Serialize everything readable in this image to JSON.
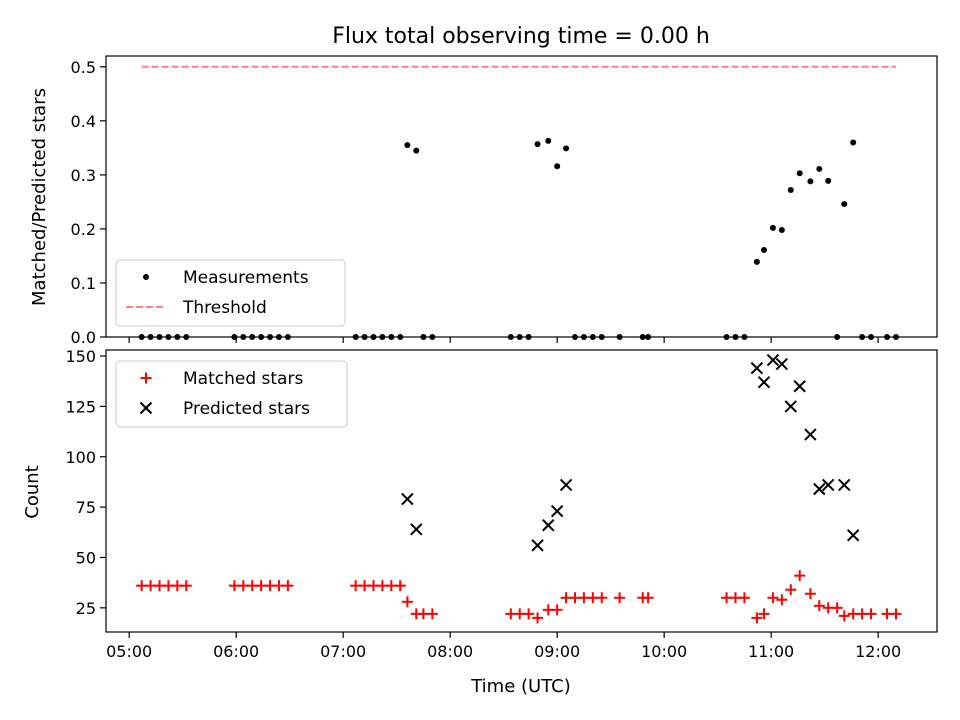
{
  "chart_data": [
    {
      "type": "scatter",
      "title": "Flux total observing time = 0.00 h",
      "ylabel": "Matched/Predicted stars",
      "xlabel": "",
      "xlim": [
        "04:47",
        "12:33"
      ],
      "ylim": [
        0,
        0.52
      ],
      "yticks": [
        "0.0",
        "0.1",
        "0.2",
        "0.3",
        "0.4",
        "0.5"
      ],
      "grid": false,
      "legend_position": "lower-left",
      "series": [
        {
          "name": "Measurements",
          "marker": "dot",
          "color": "#000000",
          "points": [
            [
              "05:07",
              0
            ],
            [
              "05:12",
              0
            ],
            [
              "05:17",
              0
            ],
            [
              "05:22",
              0
            ],
            [
              "05:27",
              0
            ],
            [
              "05:32",
              0
            ],
            [
              "05:59",
              0
            ],
            [
              "06:04",
              0
            ],
            [
              "06:09",
              0
            ],
            [
              "06:14",
              0
            ],
            [
              "06:19",
              0
            ],
            [
              "06:24",
              0
            ],
            [
              "06:29",
              0
            ],
            [
              "07:07",
              0
            ],
            [
              "07:12",
              0
            ],
            [
              "07:17",
              0
            ],
            [
              "07:22",
              0
            ],
            [
              "07:27",
              0
            ],
            [
              "07:32",
              0
            ],
            [
              "07:36",
              0.355
            ],
            [
              "07:41",
              0.345
            ],
            [
              "07:45",
              0
            ],
            [
              "07:50",
              0
            ],
            [
              "08:34",
              0
            ],
            [
              "08:39",
              0
            ],
            [
              "08:44",
              0
            ],
            [
              "08:49",
              0.357
            ],
            [
              "08:55",
              0.363
            ],
            [
              "09:00",
              0.316
            ],
            [
              "09:05",
              0.349
            ],
            [
              "09:10",
              0
            ],
            [
              "09:15",
              0
            ],
            [
              "09:20",
              0
            ],
            [
              "09:25",
              0
            ],
            [
              "09:35",
              0
            ],
            [
              "09:48",
              0
            ],
            [
              "09:51",
              0
            ],
            [
              "10:35",
              0
            ],
            [
              "10:40",
              0
            ],
            [
              "10:45",
              0
            ],
            [
              "10:52",
              0.139
            ],
            [
              "10:56",
              0.161
            ],
            [
              "11:01",
              0.202
            ],
            [
              "11:06",
              0.198
            ],
            [
              "11:11",
              0.272
            ],
            [
              "11:16",
              0.303
            ],
            [
              "11:22",
              0.288
            ],
            [
              "11:27",
              0.311
            ],
            [
              "11:32",
              0.289
            ],
            [
              "11:37",
              0
            ],
            [
              "11:41",
              0.246
            ],
            [
              "11:46",
              0.36
            ],
            [
              "11:51",
              0
            ],
            [
              "11:56",
              0
            ],
            [
              "12:05",
              0
            ],
            [
              "12:10",
              0
            ]
          ]
        },
        {
          "name": "Threshold",
          "line_style": "dashed",
          "color": "#ff7f7f",
          "points": [
            [
              "05:07",
              0.5
            ],
            [
              "12:10",
              0.5
            ]
          ]
        }
      ]
    },
    {
      "type": "scatter",
      "title": "",
      "ylabel": "Count",
      "xlabel": "Time (UTC)",
      "xlim": [
        "04:47",
        "12:33"
      ],
      "ylim": [
        13,
        153
      ],
      "xticks": [
        "05:00",
        "06:00",
        "07:00",
        "08:00",
        "09:00",
        "10:00",
        "11:00",
        "12:00"
      ],
      "yticks": [
        "25",
        "50",
        "75",
        "100",
        "125",
        "150"
      ],
      "grid": false,
      "legend_position": "upper-left",
      "series": [
        {
          "name": "Matched stars",
          "marker": "plus",
          "color": "#ff0000",
          "points": [
            [
              "05:07",
              36
            ],
            [
              "05:12",
              36
            ],
            [
              "05:17",
              36
            ],
            [
              "05:22",
              36
            ],
            [
              "05:27",
              36
            ],
            [
              "05:32",
              36
            ],
            [
              "05:59",
              36
            ],
            [
              "06:04",
              36
            ],
            [
              "06:09",
              36
            ],
            [
              "06:14",
              36
            ],
            [
              "06:19",
              36
            ],
            [
              "06:24",
              36
            ],
            [
              "06:29",
              36
            ],
            [
              "07:07",
              36
            ],
            [
              "07:12",
              36
            ],
            [
              "07:17",
              36
            ],
            [
              "07:22",
              36
            ],
            [
              "07:27",
              36
            ],
            [
              "07:32",
              36
            ],
            [
              "07:36",
              28
            ],
            [
              "07:41",
              22
            ],
            [
              "07:45",
              22
            ],
            [
              "07:50",
              22
            ],
            [
              "08:34",
              22
            ],
            [
              "08:39",
              22
            ],
            [
              "08:44",
              22
            ],
            [
              "08:49",
              20
            ],
            [
              "08:55",
              24
            ],
            [
              "09:00",
              24
            ],
            [
              "09:05",
              30
            ],
            [
              "09:10",
              30
            ],
            [
              "09:15",
              30
            ],
            [
              "09:20",
              30
            ],
            [
              "09:25",
              30
            ],
            [
              "09:35",
              30
            ],
            [
              "09:48",
              30
            ],
            [
              "09:51",
              30
            ],
            [
              "10:35",
              30
            ],
            [
              "10:40",
              30
            ],
            [
              "10:45",
              30
            ],
            [
              "10:52",
              20
            ],
            [
              "10:56",
              22
            ],
            [
              "11:01",
              30
            ],
            [
              "11:06",
              29
            ],
            [
              "11:11",
              34
            ],
            [
              "11:16",
              41
            ],
            [
              "11:22",
              32
            ],
            [
              "11:27",
              26
            ],
            [
              "11:32",
              25
            ],
            [
              "11:37",
              25
            ],
            [
              "11:41",
              21
            ],
            [
              "11:46",
              22
            ],
            [
              "11:51",
              22
            ],
            [
              "11:56",
              22
            ],
            [
              "12:05",
              22
            ],
            [
              "12:10",
              22
            ]
          ]
        },
        {
          "name": "Predicted stars",
          "marker": "x",
          "color": "#000000",
          "points": [
            [
              "07:36",
              79
            ],
            [
              "07:41",
              64
            ],
            [
              "08:49",
              56
            ],
            [
              "08:55",
              66
            ],
            [
              "09:00",
              73
            ],
            [
              "09:05",
              86
            ],
            [
              "10:52",
              144
            ],
            [
              "10:56",
              137
            ],
            [
              "11:01",
              148
            ],
            [
              "11:06",
              146
            ],
            [
              "11:11",
              125
            ],
            [
              "11:16",
              135
            ],
            [
              "11:22",
              111
            ],
            [
              "11:27",
              84
            ],
            [
              "11:32",
              86
            ],
            [
              "11:41",
              86
            ],
            [
              "11:46",
              61
            ]
          ]
        }
      ]
    }
  ]
}
